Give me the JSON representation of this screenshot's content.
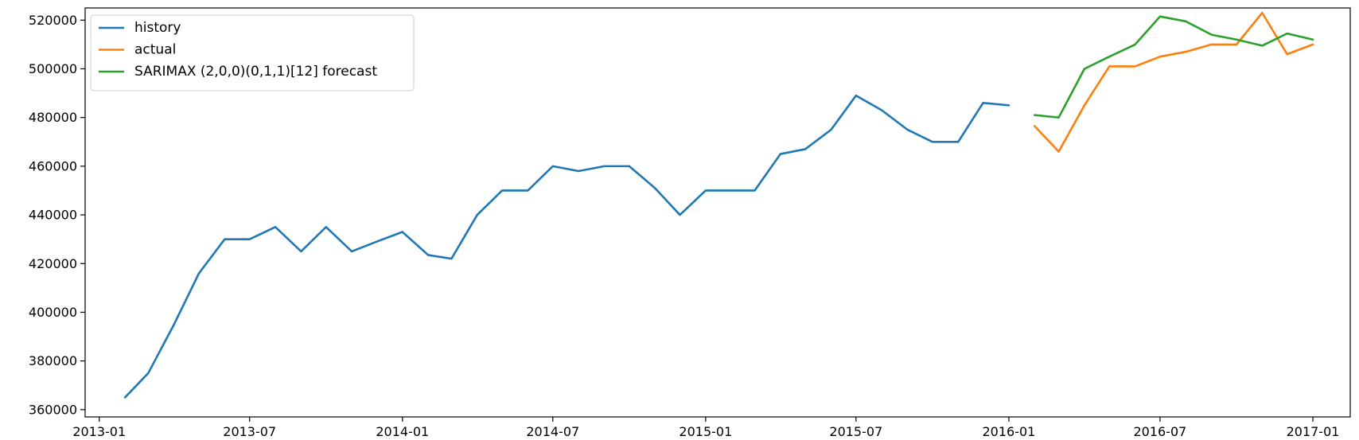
{
  "chart_data": {
    "type": "line",
    "title": "",
    "xlabel": "",
    "ylabel": "",
    "x_range": [
      "2012-12-15",
      "2017-02-15"
    ],
    "ylim": [
      357000,
      525000
    ],
    "x_ticks": [
      "2013-01-01",
      "2013-07-01",
      "2014-01-01",
      "2014-07-01",
      "2015-01-01",
      "2015-07-01",
      "2016-01-01",
      "2016-07-01",
      "2017-01-01"
    ],
    "x_tick_labels": [
      "2013-01",
      "2013-07",
      "2014-01",
      "2014-07",
      "2015-01",
      "2015-07",
      "2016-01",
      "2016-07",
      "2017-01"
    ],
    "y_ticks": [
      360000,
      380000,
      400000,
      420000,
      440000,
      460000,
      480000,
      500000,
      520000
    ],
    "y_tick_labels": [
      "360000",
      "380000",
      "400000",
      "420000",
      "440000",
      "460000",
      "480000",
      "500000",
      "520000"
    ],
    "grid": false,
    "legend_position": "top-left",
    "series": [
      {
        "name": "history",
        "color": "#1f77b4",
        "x": [
          "2013-02",
          "2013-03",
          "2013-04",
          "2013-05",
          "2013-06",
          "2013-07",
          "2013-08",
          "2013-09",
          "2013-10",
          "2013-11",
          "2013-12",
          "2014-01",
          "2014-02",
          "2014-03",
          "2014-04",
          "2014-05",
          "2014-06",
          "2014-07",
          "2014-08",
          "2014-09",
          "2014-10",
          "2014-11",
          "2014-12",
          "2015-01",
          "2015-02",
          "2015-03",
          "2015-04",
          "2015-05",
          "2015-06",
          "2015-07",
          "2015-08",
          "2015-09",
          "2015-10",
          "2015-11",
          "2015-12",
          "2016-01"
        ],
        "values": [
          365000,
          375000,
          395000,
          416000,
          430000,
          430000,
          435000,
          425000,
          435000,
          425000,
          429000,
          433000,
          423500,
          422000,
          440000,
          450000,
          450000,
          460000,
          458000,
          460000,
          460000,
          451000,
          440000,
          450000,
          450000,
          450000,
          465000,
          467000,
          475000,
          489000,
          483000,
          475000,
          470000,
          470000,
          486000,
          485000
        ]
      },
      {
        "name": "actual",
        "color": "#ff7f0e",
        "x": [
          "2016-02",
          "2016-03",
          "2016-04",
          "2016-05",
          "2016-06",
          "2016-07",
          "2016-08",
          "2016-09",
          "2016-10",
          "2016-11",
          "2016-12",
          "2017-01"
        ],
        "values": [
          476500,
          466000,
          485000,
          501000,
          501000,
          505000,
          507000,
          510000,
          510000,
          523000,
          506000,
          510000
        ]
      },
      {
        "name": "SARIMAX (2,0,0)(0,1,1)[12] forecast",
        "color": "#2ca02c",
        "x": [
          "2016-02",
          "2016-03",
          "2016-04",
          "2016-05",
          "2016-06",
          "2016-07",
          "2016-08",
          "2016-09",
          "2016-10",
          "2016-11",
          "2016-12",
          "2017-01"
        ],
        "values": [
          481000,
          480000,
          500000,
          505000,
          510000,
          521500,
          519500,
          514000,
          512000,
          509500,
          514500,
          512000
        ]
      }
    ]
  }
}
